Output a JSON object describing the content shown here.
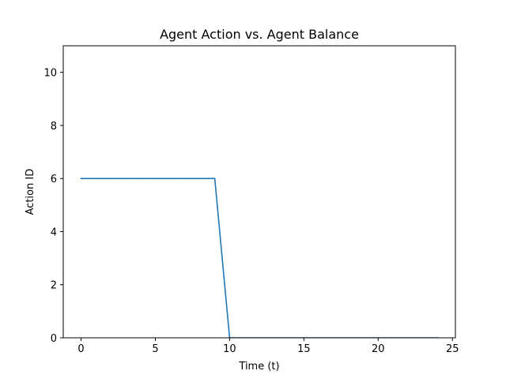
{
  "chart_data": {
    "type": "line",
    "title": "Agent Action vs. Agent Balance",
    "xlabel": "Time (t)",
    "ylabel": "Action ID",
    "xlim": [
      -1.2,
      25.2
    ],
    "ylim": [
      0,
      11
    ],
    "xticks": [
      0,
      5,
      10,
      15,
      20,
      25
    ],
    "yticks": [
      0,
      2,
      4,
      6,
      8,
      10
    ],
    "grid": false,
    "legend": "none",
    "series": [
      {
        "color": "#1f77b4",
        "x": [
          0,
          1,
          2,
          3,
          4,
          5,
          6,
          7,
          8,
          9,
          10,
          11,
          12,
          13,
          14,
          15,
          16,
          17,
          18,
          19,
          20,
          21,
          22,
          23,
          24
        ],
        "y": [
          6,
          6,
          6,
          6,
          6,
          6,
          6,
          6,
          6,
          6,
          0,
          0,
          0,
          0,
          0,
          0,
          0,
          0,
          0,
          0,
          0,
          0,
          0,
          0,
          0
        ]
      }
    ]
  }
}
